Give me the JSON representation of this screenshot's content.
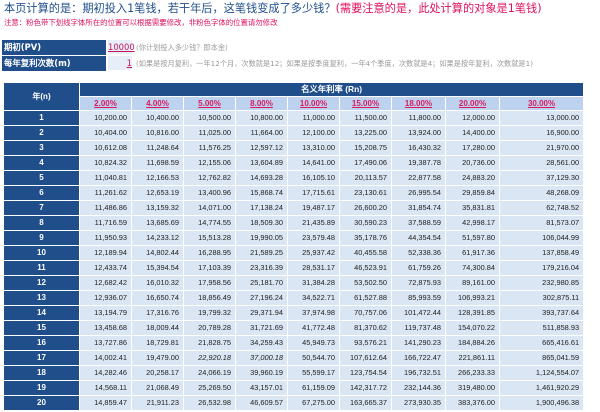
{
  "header": {
    "title_main": "本页计算的是：期初投入1笔钱，若干年后，这笔钱变成了多少钱？",
    "title_warn": "(需要注意的是，此处计算的对象是1笔钱)",
    "note": "注意：粉色带下划线字体所在的位置可以根据需要修改，非粉色字体的位置请勿修改"
  },
  "inputs": {
    "principal_label": "期初(PV)",
    "principal_value": "10000",
    "principal_hint": "(你计划投入多少钱？即本金)",
    "periods_label": "每年复利次数(m)",
    "periods_value": "1",
    "periods_hint": "(如果是按月复利，一年12个月，次数就是12；如果是按季度复利，一年4个季度，次数就是4；如果是按年复利，次数就是1)"
  },
  "table": {
    "year_header": "年(n)",
    "rate_header": "名义年利率 (Rn)",
    "rates": [
      "2.00%",
      "4.00%",
      "5.00%",
      "8.00%",
      "10.00%",
      "15.00%",
      "18.00%",
      "20.00%",
      "30.00%"
    ],
    "rows": [
      {
        "year": "1",
        "values": [
          "10,200.00",
          "10,400.00",
          "10,500.00",
          "10,800.00",
          "11,000.00",
          "11,500.00",
          "11,800.00",
          "12,000.00",
          "13,000.00"
        ]
      },
      {
        "year": "2",
        "values": [
          "10,404.00",
          "10,816.00",
          "11,025.00",
          "11,664.00",
          "12,100.00",
          "13,225.00",
          "13,924.00",
          "14,400.00",
          "16,900.00"
        ]
      },
      {
        "year": "3",
        "values": [
          "10,612.08",
          "11,248.64",
          "11,576.25",
          "12,597.12",
          "13,310.00",
          "15,208.75",
          "16,430.32",
          "17,280.00",
          "21,970.00"
        ]
      },
      {
        "year": "4",
        "values": [
          "10,824.32",
          "11,698.59",
          "12,155.06",
          "13,604.89",
          "14,641.00",
          "17,490.06",
          "19,387.78",
          "20,736.00",
          "28,561.00"
        ]
      },
      {
        "year": "5",
        "values": [
          "11,040.81",
          "12,166.53",
          "12,762.82",
          "14,693.28",
          "16,105.10",
          "20,113.57",
          "22,877.58",
          "24,883.20",
          "37,129.30"
        ]
      },
      {
        "year": "6",
        "values": [
          "11,261.62",
          "12,653.19",
          "13,400.96",
          "15,868.74",
          "17,715.61",
          "23,130.61",
          "26,995.54",
          "29,859.84",
          "48,268.09"
        ]
      },
      {
        "year": "7",
        "values": [
          "11,486.86",
          "13,159.32",
          "14,071.00",
          "17,138.24",
          "19,487.17",
          "26,600.20",
          "31,854.74",
          "35,831.81",
          "62,748.52"
        ]
      },
      {
        "year": "8",
        "values": [
          "11,716.59",
          "13,685.69",
          "14,774.55",
          "18,509.30",
          "21,435.89",
          "30,590.23",
          "37,588.59",
          "42,998.17",
          "81,573.07"
        ]
      },
      {
        "year": "9",
        "values": [
          "11,950.93",
          "14,233.12",
          "15,513.28",
          "19,990.05",
          "23,579.48",
          "35,178.76",
          "44,354.54",
          "51,597.80",
          "106,044.99"
        ]
      },
      {
        "year": "10",
        "values": [
          "12,189.94",
          "14,802.44",
          "16,288.95",
          "21,589.25",
          "25,937.42",
          "40,455.58",
          "52,338.36",
          "61,917.36",
          "137,858.49"
        ]
      },
      {
        "year": "11",
        "values": [
          "12,433.74",
          "15,394.54",
          "17,103.39",
          "23,316.39",
          "28,531.17",
          "46,523.91",
          "61,759.26",
          "74,300.84",
          "179,216.04"
        ]
      },
      {
        "year": "12",
        "values": [
          "12,682.42",
          "16,010.32",
          "17,958.56",
          "25,181.70",
          "31,384.28",
          "53,502.50",
          "72,875.93",
          "89,161.00",
          "232,980.85"
        ]
      },
      {
        "year": "13",
        "values": [
          "12,936.07",
          "16,650.74",
          "18,856.49",
          "27,196.24",
          "34,522.71",
          "61,527.88",
          "85,993.59",
          "106,993.21",
          "302,875.11"
        ]
      },
      {
        "year": "14",
        "values": [
          "13,194.79",
          "17,316.76",
          "19,799.32",
          "29,371.94",
          "37,974.98",
          "70,757.06",
          "101,472.44",
          "128,391.85",
          "393,737.64"
        ]
      },
      {
        "year": "15",
        "values": [
          "13,458.68",
          "18,009.44",
          "20,789.28",
          "31,721.69",
          "41,772.48",
          "81,370.62",
          "119,737.48",
          "154,070.22",
          "511,858.93"
        ]
      },
      {
        "year": "16",
        "values": [
          "13,727.86",
          "18,729.81",
          "21,828.75",
          "34,259.43",
          "45,949.73",
          "93,576.21",
          "141,290.23",
          "184,884.26",
          "665,416.61"
        ]
      },
      {
        "year": "17",
        "values": [
          "14,002.41",
          "19,479.00",
          "22,920.18",
          "37,000.18",
          "50,544.70",
          "107,612.64",
          "166,722.47",
          "221,861.11",
          "865,041.59"
        ]
      },
      {
        "year": "18",
        "values": [
          "14,282.46",
          "20,258.17",
          "24,066.19",
          "39,960.19",
          "55,599.17",
          "123,754.54",
          "196,732.51",
          "266,233.33",
          "1,124,554.07"
        ]
      },
      {
        "year": "19",
        "values": [
          "14,568.11",
          "21,068.49",
          "25,269.50",
          "43,157.01",
          "61,159.09",
          "142,317.72",
          "232,144.36",
          "319,480.00",
          "1,461,920.29"
        ]
      },
      {
        "year": "20",
        "values": [
          "14,859.47",
          "21,911.23",
          "26,532.98",
          "46,609.57",
          "67,275.00",
          "163,665.37",
          "273,930.35",
          "383,376.00",
          "1,900,496.38"
        ]
      }
    ]
  }
}
